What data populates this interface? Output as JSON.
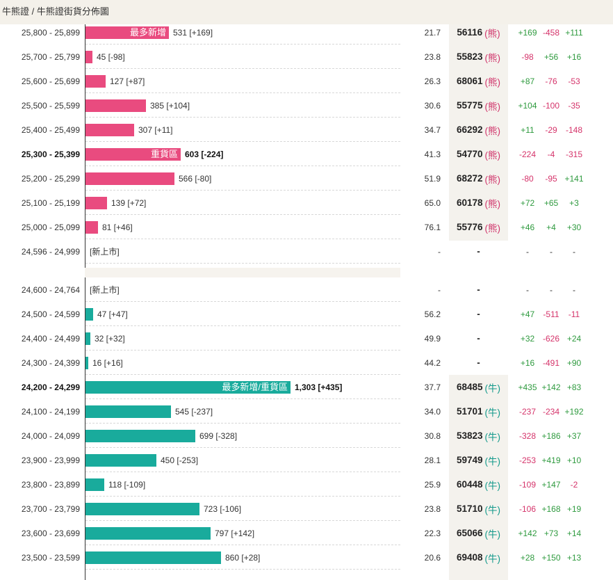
{
  "breadcrumb": "牛熊證 / 牛熊證街貨分佈圖",
  "colors": {
    "bear": "#e94b7f",
    "bull": "#19ab9c",
    "positive": "#2e9a3e",
    "negative": "#d5336a"
  },
  "bear_rows": [
    {
      "range": "25,800 - 25,899",
      "value": 531,
      "value_text": "531 [+169]",
      "bar_label": "最多新增",
      "bold": false,
      "pct": "21.7",
      "code": "56116",
      "tag": "(熊)",
      "changes": [
        "+169",
        "-458",
        "+111"
      ]
    },
    {
      "range": "25,700 - 25,799",
      "value": 45,
      "value_text": "45 [-98]",
      "bar_label": "",
      "bold": false,
      "pct": "23.8",
      "code": "55823",
      "tag": "(熊)",
      "changes": [
        "-98",
        "+56",
        "+16"
      ]
    },
    {
      "range": "25,600 - 25,699",
      "value": 127,
      "value_text": "127 [+87]",
      "bar_label": "",
      "bold": false,
      "pct": "26.3",
      "code": "68061",
      "tag": "(熊)",
      "changes": [
        "+87",
        "-76",
        "-53"
      ]
    },
    {
      "range": "25,500 - 25,599",
      "value": 385,
      "value_text": "385 [+104]",
      "bar_label": "",
      "bold": false,
      "pct": "30.6",
      "code": "55775",
      "tag": "(熊)",
      "changes": [
        "+104",
        "-100",
        "-35"
      ]
    },
    {
      "range": "25,400 - 25,499",
      "value": 307,
      "value_text": "307 [+11]",
      "bar_label": "",
      "bold": false,
      "pct": "34.7",
      "code": "66292",
      "tag": "(熊)",
      "changes": [
        "+11",
        "-29",
        "-148"
      ]
    },
    {
      "range": "25,300 - 25,399",
      "value": 603,
      "value_text": "603 [-224]",
      "bar_label": "重貨區",
      "bold": true,
      "pct": "41.3",
      "code": "54770",
      "tag": "(熊)",
      "changes": [
        "-224",
        "-4",
        "-315"
      ]
    },
    {
      "range": "25,200 - 25,299",
      "value": 566,
      "value_text": "566 [-80]",
      "bar_label": "",
      "bold": false,
      "pct": "51.9",
      "code": "68272",
      "tag": "(熊)",
      "changes": [
        "-80",
        "-95",
        "+141"
      ]
    },
    {
      "range": "25,100 - 25,199",
      "value": 139,
      "value_text": "139 [+72]",
      "bar_label": "",
      "bold": false,
      "pct": "65.0",
      "code": "60178",
      "tag": "(熊)",
      "changes": [
        "+72",
        "+65",
        "+3"
      ]
    },
    {
      "range": "25,000 - 25,099",
      "value": 81,
      "value_text": "81 [+46]",
      "bar_label": "",
      "bold": false,
      "pct": "76.1",
      "code": "55776",
      "tag": "(熊)",
      "changes": [
        "+46",
        "+4",
        "+30"
      ]
    },
    {
      "range": "24,596 - 24,999",
      "value": null,
      "value_text": "[新上市]",
      "bar_label": "",
      "bold": false,
      "pct": "-",
      "code": "-",
      "tag": "",
      "changes": [
        "-",
        "-",
        "-"
      ]
    }
  ],
  "bull_rows": [
    {
      "range": "24,600 - 24,764",
      "value": null,
      "value_text": "[新上市]",
      "bar_label": "",
      "bold": false,
      "pct": "-",
      "code": "-",
      "tag": "",
      "changes": [
        "-",
        "-",
        "-"
      ]
    },
    {
      "range": "24,500 - 24,599",
      "value": 47,
      "value_text": "47 [+47]",
      "bar_label": "",
      "bold": false,
      "pct": "56.2",
      "code": "-",
      "tag": "",
      "changes": [
        "+47",
        "-511",
        "-11"
      ]
    },
    {
      "range": "24,400 - 24,499",
      "value": 32,
      "value_text": "32 [+32]",
      "bar_label": "",
      "bold": false,
      "pct": "49.9",
      "code": "-",
      "tag": "",
      "changes": [
        "+32",
        "-626",
        "+24"
      ]
    },
    {
      "range": "24,300 - 24,399",
      "value": 16,
      "value_text": "16 [+16]",
      "bar_label": "",
      "bold": false,
      "pct": "44.2",
      "code": "-",
      "tag": "",
      "changes": [
        "+16",
        "-491",
        "+90"
      ]
    },
    {
      "range": "24,200 - 24,299",
      "value": 1303,
      "value_text": "1,303 [+435]",
      "bar_label": "最多新增/重貨區",
      "bold": true,
      "pct": "37.7",
      "code": "68485",
      "tag": "(牛)",
      "changes": [
        "+435",
        "+142",
        "+83"
      ]
    },
    {
      "range": "24,100 - 24,199",
      "value": 545,
      "value_text": "545 [-237]",
      "bar_label": "",
      "bold": false,
      "pct": "34.0",
      "code": "51701",
      "tag": "(牛)",
      "changes": [
        "-237",
        "-234",
        "+192"
      ]
    },
    {
      "range": "24,000 - 24,099",
      "value": 699,
      "value_text": "699 [-328]",
      "bar_label": "",
      "bold": false,
      "pct": "30.8",
      "code": "53823",
      "tag": "(牛)",
      "changes": [
        "-328",
        "+186",
        "+37"
      ]
    },
    {
      "range": "23,900 - 23,999",
      "value": 450,
      "value_text": "450 [-253]",
      "bar_label": "",
      "bold": false,
      "pct": "28.1",
      "code": "59749",
      "tag": "(牛)",
      "changes": [
        "-253",
        "+419",
        "+10"
      ]
    },
    {
      "range": "23,800 - 23,899",
      "value": 118,
      "value_text": "118 [-109]",
      "bar_label": "",
      "bold": false,
      "pct": "25.9",
      "code": "60448",
      "tag": "(牛)",
      "changes": [
        "-109",
        "+147",
        "-2"
      ]
    },
    {
      "range": "23,700 - 23,799",
      "value": 723,
      "value_text": "723 [-106]",
      "bar_label": "",
      "bold": false,
      "pct": "23.8",
      "code": "51710",
      "tag": "(牛)",
      "changes": [
        "-106",
        "+168",
        "+19"
      ]
    },
    {
      "range": "23,600 - 23,699",
      "value": 797,
      "value_text": "797 [+142]",
      "bar_label": "",
      "bold": false,
      "pct": "22.3",
      "code": "65066",
      "tag": "(牛)",
      "changes": [
        "+142",
        "+73",
        "+14"
      ]
    },
    {
      "range": "23,500 - 23,599",
      "value": 860,
      "value_text": "860 [+28]",
      "bar_label": "",
      "bold": false,
      "pct": "20.6",
      "code": "69408",
      "tag": "(牛)",
      "changes": [
        "+28",
        "+150",
        "+13"
      ]
    }
  ]
}
